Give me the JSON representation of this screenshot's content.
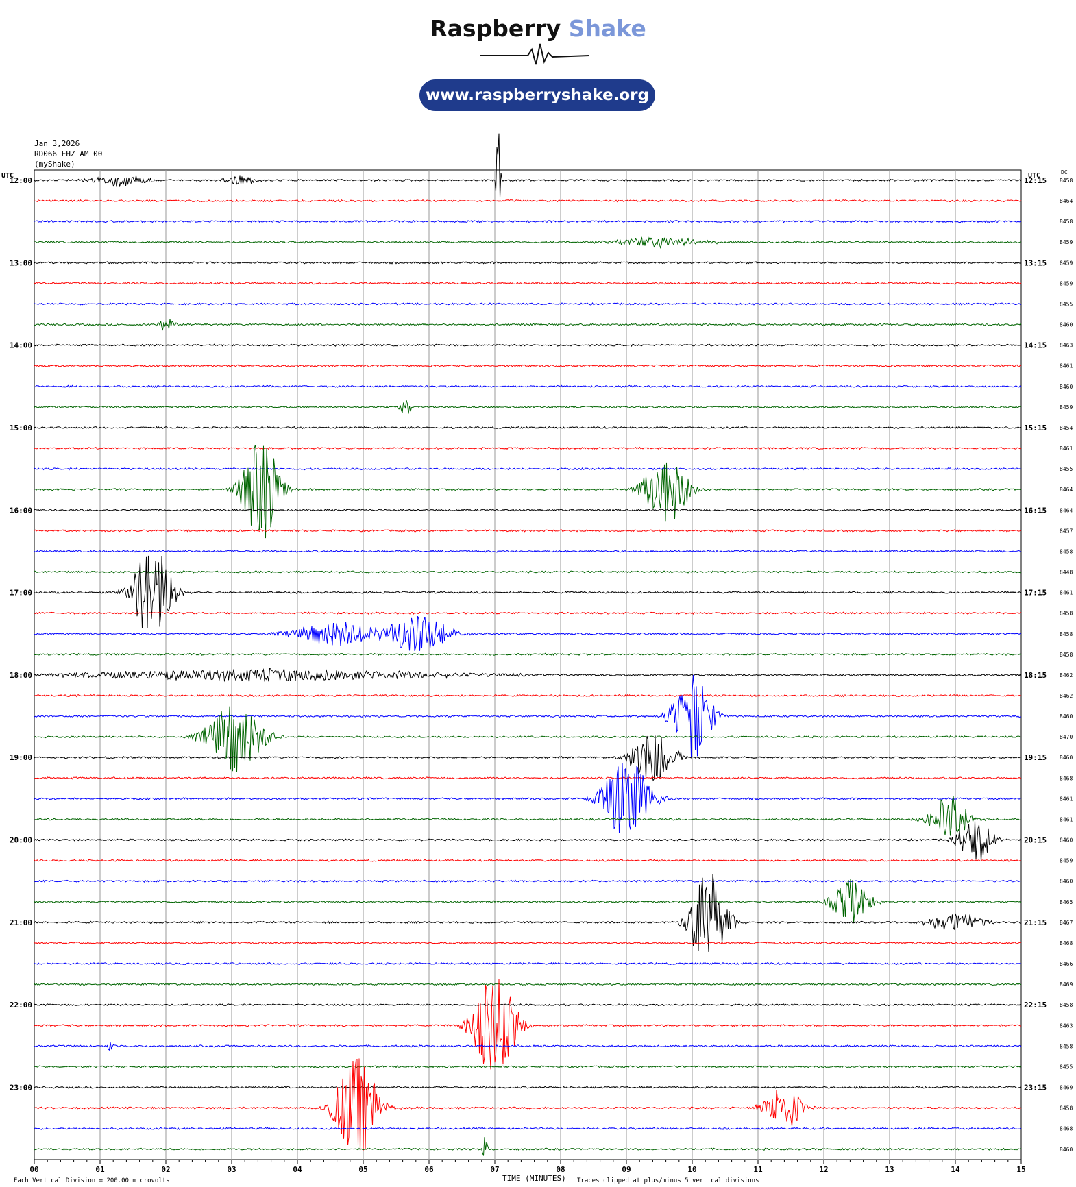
{
  "branding": {
    "title_dark": "Raspberry",
    "title_light": "Shake",
    "url": "www.raspberryshake.org",
    "colors": {
      "brand_blue": "#1f3b8c",
      "brand_light": "#7b97d9"
    }
  },
  "header": {
    "date": "Jan 3,2026",
    "station": "RD066 EHZ AM 00",
    "network": "(myShake)"
  },
  "chart_data": {
    "type": "line",
    "title": "",
    "xlabel": "TIME (MINUTES)",
    "left_axis_label": "UTC",
    "right_axis_label": "UTC",
    "dc_label": "DC",
    "xlim": [
      0,
      15
    ],
    "x_ticks": [
      "00",
      "01",
      "02",
      "03",
      "04",
      "05",
      "06",
      "07",
      "08",
      "09",
      "10",
      "11",
      "12",
      "13",
      "14",
      "15"
    ],
    "trace_colors": [
      "#000000",
      "#ff0000",
      "#0000ff",
      "#006400"
    ],
    "left_hour_labels": [
      "12:00",
      "13:00",
      "14:00",
      "15:00",
      "16:00",
      "17:00",
      "18:00",
      "19:00",
      "20:00",
      "21:00",
      "22:00",
      "23:00"
    ],
    "right_hour_labels": [
      "12:15",
      "13:15",
      "14:15",
      "15:15",
      "16:15",
      "17:15",
      "18:15",
      "19:15",
      "20:15",
      "21:15",
      "22:15",
      "23:15"
    ],
    "dc_values": [
      "8458",
      "8464",
      "8458",
      "8459",
      "8459",
      "8459",
      "8455",
      "8460",
      "8463",
      "8461",
      "8460",
      "8459",
      "8454",
      "8461",
      "8455",
      "8464",
      "8464",
      "8457",
      "8458",
      "8448",
      "8461",
      "8458",
      "8458",
      "8458",
      "8462",
      "8462",
      "8460",
      "8470",
      "8460",
      "8468",
      "8461",
      "8461",
      "8460",
      "8459",
      "8460",
      "8465",
      "8467",
      "8468",
      "8466",
      "8469",
      "8458",
      "8463",
      "8458",
      "8455",
      "8469",
      "8458",
      "8468",
      "8460"
    ],
    "events": [
      {
        "trace": 0,
        "minute": 7.05,
        "amp": 6.0,
        "width": 0.04
      },
      {
        "trace": 0,
        "minute": 1.3,
        "amp": 0.6,
        "width": 0.5
      },
      {
        "trace": 0,
        "minute": 3.1,
        "amp": 0.5,
        "width": 0.3
      },
      {
        "trace": 3,
        "minute": 9.5,
        "amp": 0.5,
        "width": 0.8
      },
      {
        "trace": 7,
        "minute": 2.0,
        "amp": 0.7,
        "width": 0.15
      },
      {
        "trace": 11,
        "minute": 5.65,
        "amp": 0.9,
        "width": 0.12
      },
      {
        "trace": 15,
        "minute": 3.45,
        "amp": 5.0,
        "width": 0.35
      },
      {
        "trace": 15,
        "minute": 9.6,
        "amp": 3.5,
        "width": 0.4
      },
      {
        "trace": 20,
        "minute": 1.8,
        "amp": 5.0,
        "width": 0.35
      },
      {
        "trace": 22,
        "minute": 5.8,
        "amp": 2.0,
        "width": 0.6
      },
      {
        "trace": 22,
        "minute": 4.6,
        "amp": 1.2,
        "width": 0.8
      },
      {
        "trace": 24,
        "minute": 3.5,
        "amp": 0.6,
        "width": 3.5
      },
      {
        "trace": 26,
        "minute": 10.0,
        "amp": 4.5,
        "width": 0.35
      },
      {
        "trace": 27,
        "minute": 3.05,
        "amp": 3.5,
        "width": 0.5
      },
      {
        "trace": 28,
        "minute": 9.4,
        "amp": 2.6,
        "width": 0.4
      },
      {
        "trace": 30,
        "minute": 9.0,
        "amp": 4.0,
        "width": 0.45
      },
      {
        "trace": 31,
        "minute": 13.9,
        "amp": 2.5,
        "width": 0.35
      },
      {
        "trace": 32,
        "minute": 14.3,
        "amp": 2.5,
        "width": 0.3
      },
      {
        "trace": 35,
        "minute": 12.4,
        "amp": 2.2,
        "width": 0.35
      },
      {
        "trace": 36,
        "minute": 10.25,
        "amp": 5.0,
        "width": 0.35
      },
      {
        "trace": 36,
        "minute": 14.0,
        "amp": 1.0,
        "width": 0.5
      },
      {
        "trace": 41,
        "minute": 7.0,
        "amp": 5.0,
        "width": 0.4
      },
      {
        "trace": 42,
        "minute": 1.15,
        "amp": 0.5,
        "width": 0.05
      },
      {
        "trace": 45,
        "minute": 4.9,
        "amp": 5.0,
        "width": 0.4
      },
      {
        "trace": 45,
        "minute": 11.4,
        "amp": 2.2,
        "width": 0.35
      },
      {
        "trace": 47,
        "minute": 6.85,
        "amp": 1.2,
        "width": 0.05
      }
    ]
  },
  "footer": {
    "left": "Each Vertical Division =  200.00 microvolts",
    "center": "TIME (MINUTES)",
    "right": "Traces clipped at plus/minus 5 vertical divisions"
  }
}
